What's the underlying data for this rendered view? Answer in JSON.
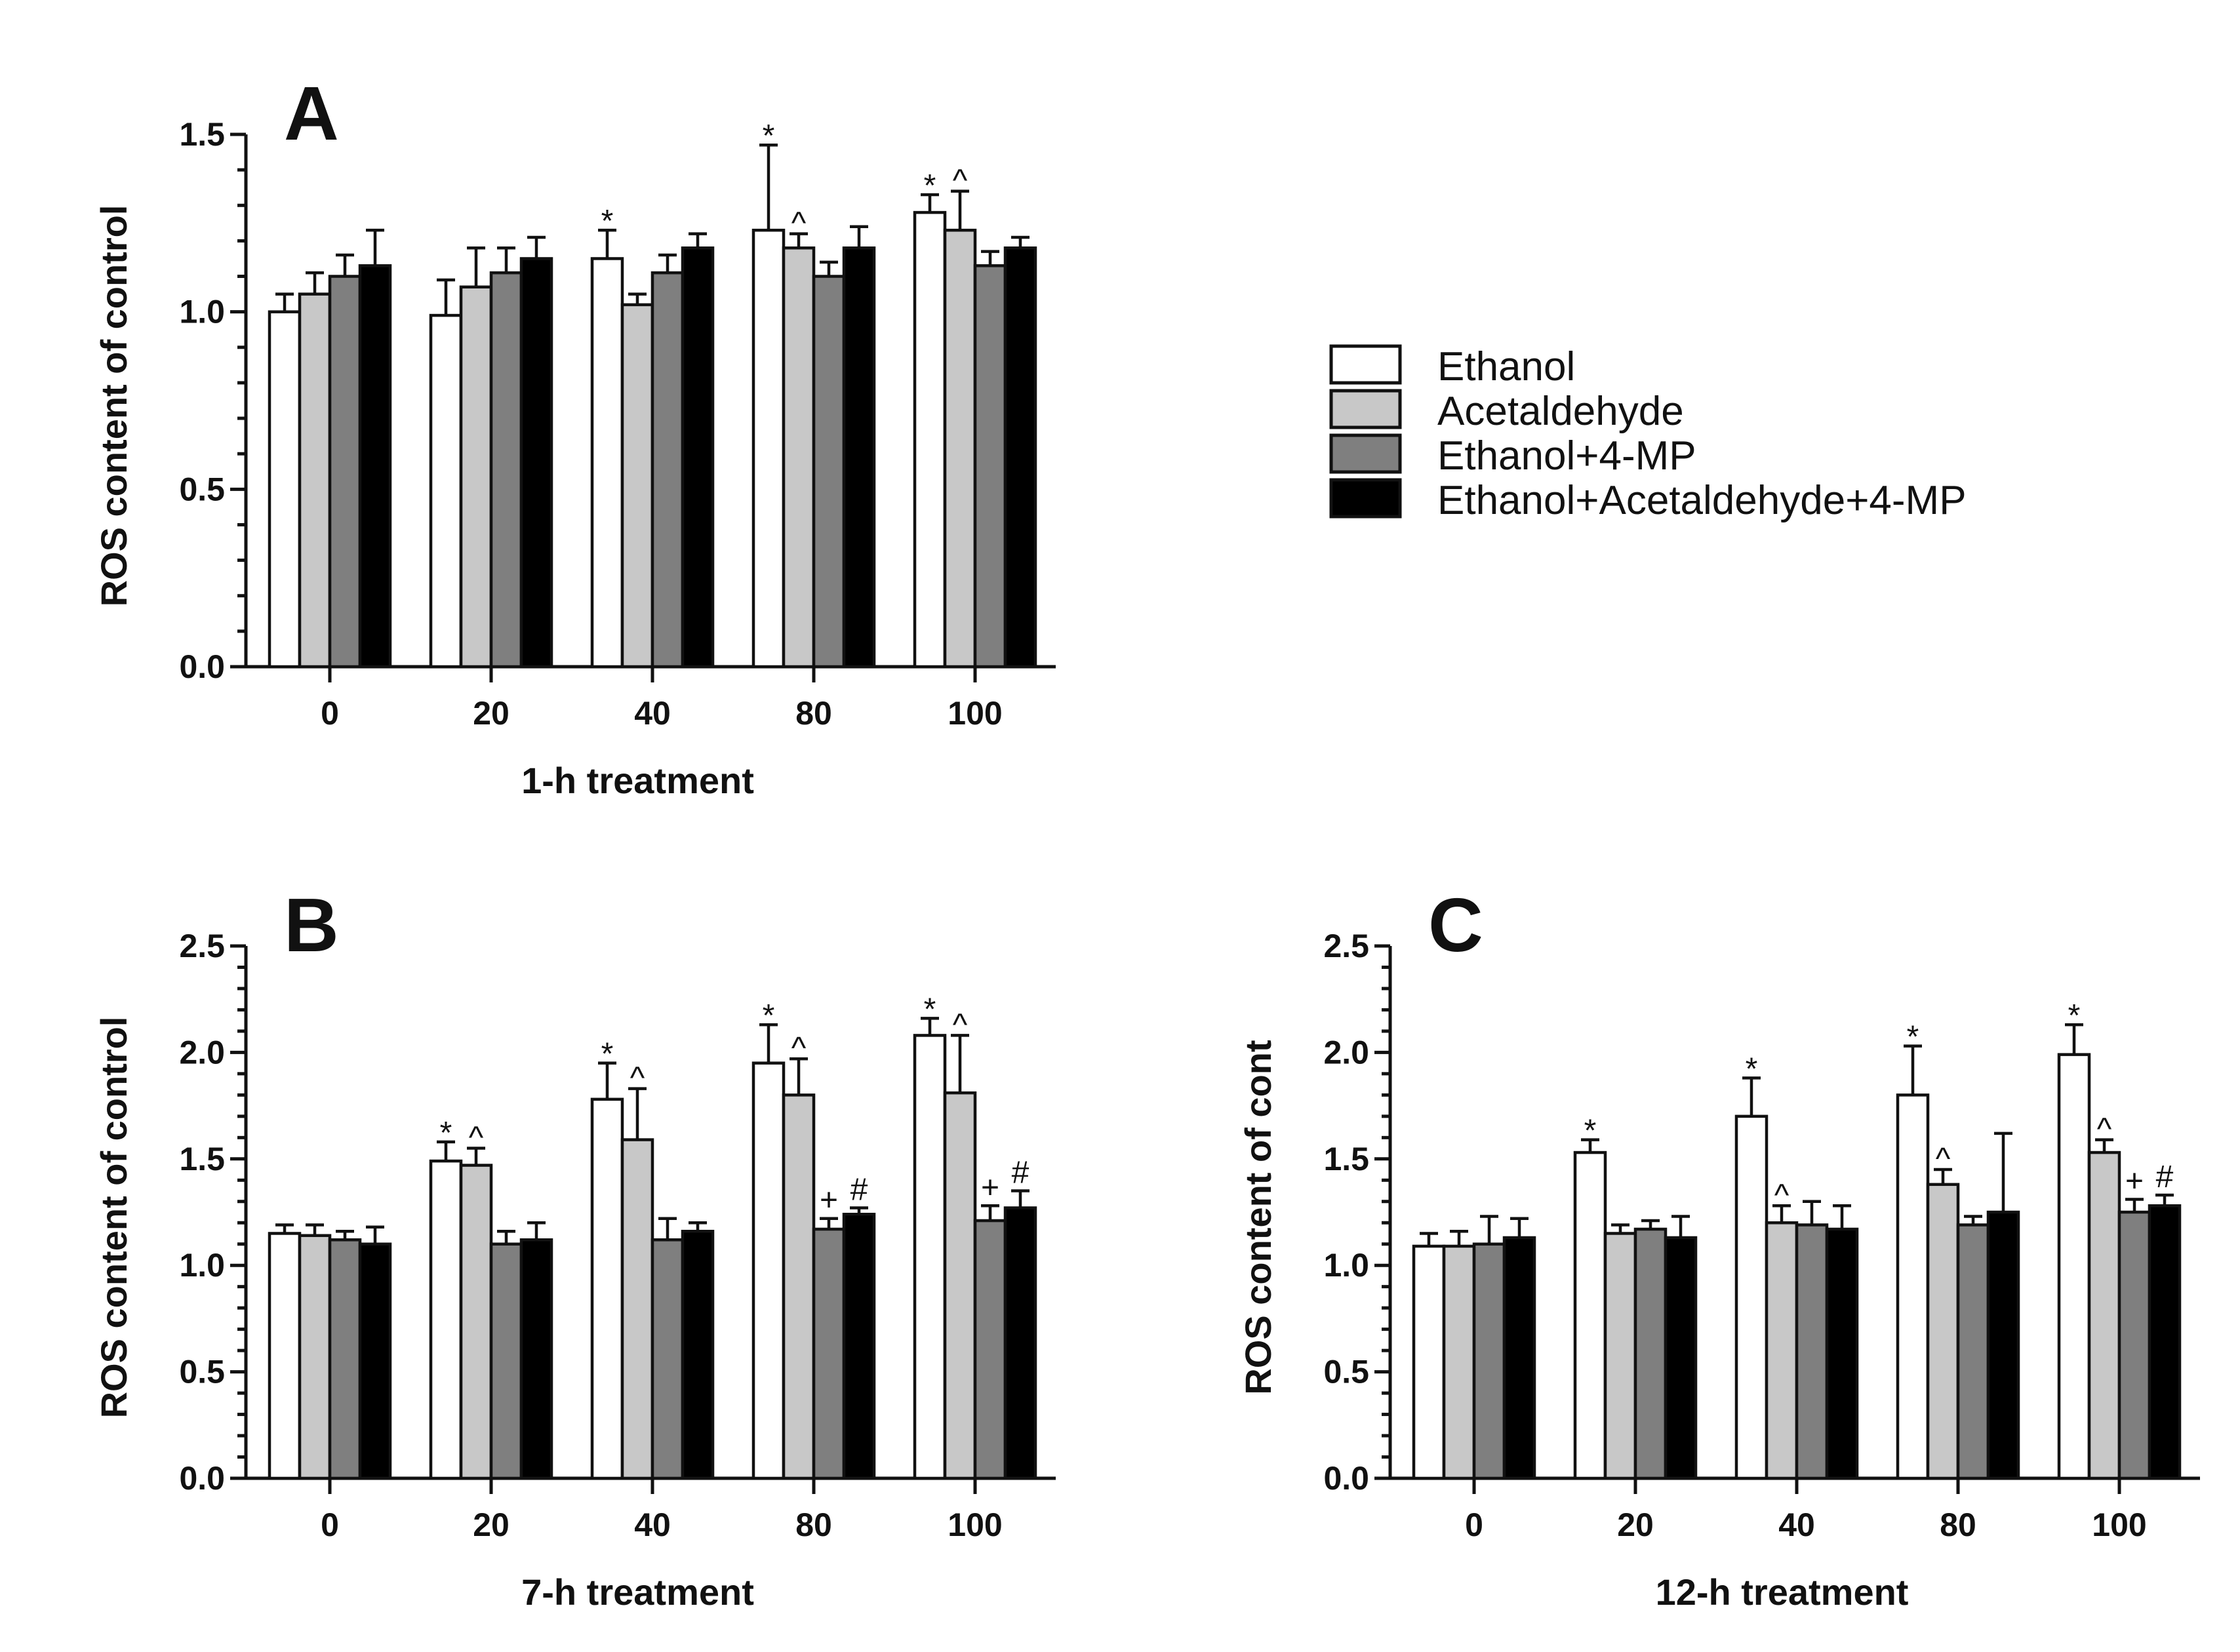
{
  "legend": {
    "entries": [
      {
        "label": "Ethanol",
        "color": "#ffffff"
      },
      {
        "label": "Acetaldehyde",
        "color": "#c8c8c8"
      },
      {
        "label": "Ethanol+4-MP",
        "color": "#7f7f7f"
      },
      {
        "label": "Ethanol+Acetaldehyde+4-MP",
        "color": "#000000"
      }
    ]
  },
  "chart_data": [
    {
      "type": "bar",
      "panel": "A",
      "xlabel": "1-h treatment",
      "ylabel": "ROS content of control",
      "ylim": [
        0,
        1.5
      ],
      "yticks": [
        0.0,
        0.5,
        1.0,
        1.5
      ],
      "ytick_labels": [
        "0.0",
        "0.5",
        "1.0",
        "1.5"
      ],
      "categories": [
        "0",
        "20",
        "40",
        "80",
        "100"
      ],
      "series": [
        {
          "name": "Ethanol",
          "values": [
            1.0,
            0.99,
            1.15,
            1.23,
            1.28
          ],
          "errors": [
            0.05,
            0.1,
            0.08,
            0.24,
            0.05
          ]
        },
        {
          "name": "Acetaldehyde",
          "values": [
            1.05,
            1.07,
            1.02,
            1.18,
            1.23
          ],
          "errors": [
            0.06,
            0.11,
            0.03,
            0.04,
            0.11
          ]
        },
        {
          "name": "Ethanol+4-MP",
          "values": [
            1.1,
            1.11,
            1.11,
            1.1,
            1.13
          ],
          "errors": [
            0.06,
            0.07,
            0.05,
            0.04,
            0.04
          ]
        },
        {
          "name": "Ethanol+Acetaldehyde+4-MP",
          "values": [
            1.13,
            1.15,
            1.18,
            1.18,
            1.18
          ],
          "errors": [
            0.1,
            0.06,
            0.04,
            0.06,
            0.03
          ]
        }
      ],
      "annotations": [
        {
          "category": 2,
          "series": 0,
          "text": "*"
        },
        {
          "category": 3,
          "series": 0,
          "text": "*"
        },
        {
          "category": 3,
          "series": 1,
          "text": "^"
        },
        {
          "category": 4,
          "series": 0,
          "text": "*"
        },
        {
          "category": 4,
          "series": 1,
          "text": "^"
        }
      ]
    },
    {
      "type": "bar",
      "panel": "B",
      "xlabel": "7-h treatment",
      "ylabel": "ROS content of control",
      "ylim": [
        0,
        2.5
      ],
      "yticks": [
        0.0,
        0.5,
        1.0,
        1.5,
        2.0,
        2.5
      ],
      "ytick_labels": [
        "0.0",
        "0.5",
        "1.0",
        "1.5",
        "2.0",
        "2.5"
      ],
      "categories": [
        "0",
        "20",
        "40",
        "80",
        "100"
      ],
      "series": [
        {
          "name": "Ethanol",
          "values": [
            1.15,
            1.49,
            1.78,
            1.95,
            2.08
          ],
          "errors": [
            0.04,
            0.09,
            0.17,
            0.18,
            0.08
          ]
        },
        {
          "name": "Acetaldehyde",
          "values": [
            1.14,
            1.47,
            1.59,
            1.8,
            1.81
          ],
          "errors": [
            0.05,
            0.08,
            0.24,
            0.17,
            0.27
          ]
        },
        {
          "name": "Ethanol+4-MP",
          "values": [
            1.12,
            1.1,
            1.12,
            1.17,
            1.21
          ],
          "errors": [
            0.04,
            0.06,
            0.1,
            0.05,
            0.07
          ]
        },
        {
          "name": "Ethanol+Acetaldehyde+4-MP",
          "values": [
            1.1,
            1.12,
            1.16,
            1.24,
            1.27
          ],
          "errors": [
            0.08,
            0.08,
            0.04,
            0.03,
            0.08
          ]
        }
      ],
      "annotations": [
        {
          "category": 1,
          "series": 0,
          "text": "*"
        },
        {
          "category": 1,
          "series": 1,
          "text": "^"
        },
        {
          "category": 2,
          "series": 0,
          "text": "*"
        },
        {
          "category": 2,
          "series": 1,
          "text": "^"
        },
        {
          "category": 3,
          "series": 0,
          "text": "*"
        },
        {
          "category": 3,
          "series": 1,
          "text": "^"
        },
        {
          "category": 3,
          "series": 2,
          "text": "+"
        },
        {
          "category": 3,
          "series": 3,
          "text": "#"
        },
        {
          "category": 4,
          "series": 0,
          "text": "*"
        },
        {
          "category": 4,
          "series": 1,
          "text": "^"
        },
        {
          "category": 4,
          "series": 2,
          "text": "+"
        },
        {
          "category": 4,
          "series": 3,
          "text": "#"
        }
      ]
    },
    {
      "type": "bar",
      "panel": "C",
      "xlabel": "12-h treatment",
      "ylabel": "ROS content of cont",
      "ylim": [
        0,
        2.5
      ],
      "yticks": [
        0.0,
        0.5,
        1.0,
        1.5,
        2.0,
        2.5
      ],
      "ytick_labels": [
        "0.0",
        "0.5",
        "1.0",
        "1.5",
        "2.0",
        "2.5"
      ],
      "categories": [
        "0",
        "20",
        "40",
        "80",
        "100"
      ],
      "series": [
        {
          "name": "Ethanol",
          "values": [
            1.09,
            1.53,
            1.7,
            1.8,
            1.99
          ],
          "errors": [
            0.06,
            0.06,
            0.18,
            0.23,
            0.14
          ]
        },
        {
          "name": "Acetaldehyde",
          "values": [
            1.09,
            1.15,
            1.2,
            1.38,
            1.53
          ],
          "errors": [
            0.07,
            0.04,
            0.08,
            0.07,
            0.06
          ]
        },
        {
          "name": "Ethanol+4-MP",
          "values": [
            1.1,
            1.17,
            1.19,
            1.19,
            1.25
          ],
          "errors": [
            0.13,
            0.04,
            0.11,
            0.04,
            0.06
          ]
        },
        {
          "name": "Ethanol+Acetaldehyde+4-MP",
          "values": [
            1.13,
            1.13,
            1.17,
            1.25,
            1.28
          ],
          "errors": [
            0.09,
            0.1,
            0.11,
            0.37,
            0.05
          ]
        }
      ],
      "annotations": [
        {
          "category": 1,
          "series": 0,
          "text": "*"
        },
        {
          "category": 2,
          "series": 0,
          "text": "*"
        },
        {
          "category": 2,
          "series": 1,
          "text": "^"
        },
        {
          "category": 3,
          "series": 0,
          "text": "*"
        },
        {
          "category": 3,
          "series": 1,
          "text": "^"
        },
        {
          "category": 4,
          "series": 0,
          "text": "*"
        },
        {
          "category": 4,
          "series": 1,
          "text": "^"
        },
        {
          "category": 4,
          "series": 2,
          "text": "+"
        },
        {
          "category": 4,
          "series": 3,
          "text": "#"
        }
      ]
    }
  ]
}
